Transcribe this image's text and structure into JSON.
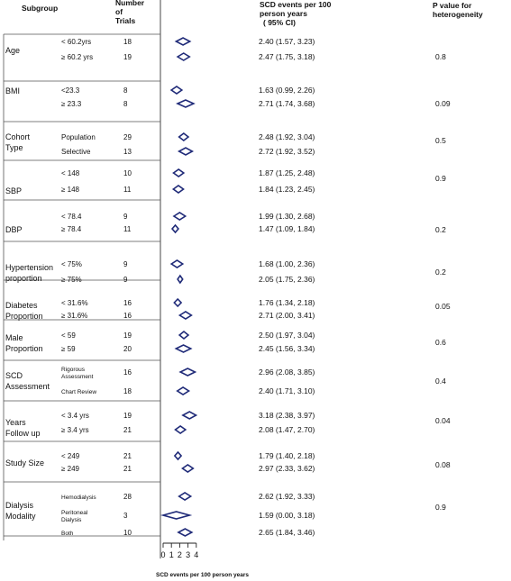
{
  "headers": {
    "subgroup": "Subgroup",
    "trials": [
      "Number",
      "of",
      "Trials"
    ],
    "estimate": [
      "SCD events per 100",
      "person years",
      "( 95% CI)"
    ],
    "pvalue": [
      "P value for",
      "heterogeneity"
    ]
  },
  "chart_data": {
    "type": "forest",
    "xlabel": "SCD events per 100 person years",
    "xticks": [
      "0",
      "1",
      "2",
      "3",
      "4"
    ],
    "xlim": [
      0,
      4
    ],
    "groups": [
      {
        "label": [
          "Age"
        ],
        "p": "0.8",
        "rows": [
          {
            "sub": "< 60.2yrs",
            "n": "18",
            "est": 2.4,
            "lo": 1.57,
            "hi": 3.23,
            "text": "2.40 (1.57, 3.23)"
          },
          {
            "sub": "≥ 60.2 yrs",
            "n": "19",
            "est": 2.47,
            "lo": 1.75,
            "hi": 3.18,
            "text": "2.47 (1.75, 3.18)"
          }
        ]
      },
      {
        "label": [
          "BMI"
        ],
        "p": "0.09",
        "rows": [
          {
            "sub": "<23.3",
            "n": "8",
            "est": 1.63,
            "lo": 0.99,
            "hi": 2.26,
            "text": "1.63 (0.99, 2.26)"
          },
          {
            "sub": "≥ 23.3",
            "n": "8",
            "est": 2.71,
            "lo": 1.74,
            "hi": 3.68,
            "text": "2.71 (1.74, 3.68)"
          }
        ]
      },
      {
        "label": [
          "Cohort",
          "Type"
        ],
        "p": "0.5",
        "rows": [
          {
            "sub": "Population",
            "n": "29",
            "est": 2.48,
            "lo": 1.92,
            "hi": 3.04,
            "text": "2.48 (1.92, 3.04)"
          },
          {
            "sub": "Selective",
            "n": "13",
            "est": 2.72,
            "lo": 1.92,
            "hi": 3.52,
            "text": "2.72 (1.92, 3.52)"
          }
        ]
      },
      {
        "label": [
          "SBP"
        ],
        "p": "0.9",
        "rows": [
          {
            "sub": "< 148",
            "n": "10",
            "est": 1.87,
            "lo": 1.25,
            "hi": 2.48,
            "text": "1.87 (1.25, 2.48)"
          },
          {
            "sub": "≥ 148",
            "n": "11",
            "est": 1.84,
            "lo": 1.23,
            "hi": 2.45,
            "text": "1.84 (1.23, 2.45)"
          }
        ]
      },
      {
        "label": [
          "DBP"
        ],
        "p": "0.2",
        "rows": [
          {
            "sub": "< 78.4",
            "n": "9",
            "est": 1.99,
            "lo": 1.3,
            "hi": 2.68,
            "text": "1.99 (1.30, 2.68)"
          },
          {
            "sub": "≥ 78.4",
            "n": "11",
            "est": 1.47,
            "lo": 1.09,
            "hi": 1.84,
            "text": "1.47 (1.09, 1.84)"
          }
        ]
      },
      {
        "label": [
          "Hypertension",
          "proportion"
        ],
        "p": "0.2",
        "rows": [
          {
            "sub": "< 75%",
            "n": "9",
            "est": 1.68,
            "lo": 1.0,
            "hi": 2.36,
            "text": "1.68 (1.00, 2.36)"
          },
          {
            "sub": "≥ 75%",
            "n": "9",
            "est": 2.05,
            "lo": 1.75,
            "hi": 2.36,
            "text": "2.05 (1.75, 2.36)"
          }
        ]
      },
      {
        "label": [
          "Diabetes",
          "Proportion"
        ],
        "p": "0.05",
        "rows": [
          {
            "sub": "< 31.6%",
            "n": "16",
            "est": 1.76,
            "lo": 1.34,
            "hi": 2.18,
            "text": "1.76 (1.34, 2.18)"
          },
          {
            "sub": "≥ 31.6%",
            "n": "16",
            "est": 2.71,
            "lo": 2.0,
            "hi": 3.41,
            "text": "2.71 (2.00, 3.41)"
          }
        ]
      },
      {
        "label": [
          "Male",
          "Proportion"
        ],
        "p": "0.6",
        "rows": [
          {
            "sub": "< 59",
            "n": "19",
            "est": 2.5,
            "lo": 1.97,
            "hi": 3.04,
            "text": "2.50 (1.97, 3.04)"
          },
          {
            "sub": "≥ 59",
            "n": "20",
            "est": 2.45,
            "lo": 1.56,
            "hi": 3.34,
            "text": "2.45 (1.56, 3.34)"
          }
        ]
      },
      {
        "label": [
          "SCD",
          "Assessment"
        ],
        "p": "0.4",
        "rows": [
          {
            "sub": [
              "Rigorous",
              "Assessment"
            ],
            "n": "16",
            "est": 2.96,
            "lo": 2.08,
            "hi": 3.85,
            "text": "2.96 (2.08, 3.85)"
          },
          {
            "sub": "Chart Review",
            "n": "18",
            "est": 2.4,
            "lo": 1.71,
            "hi": 3.1,
            "text": "2.40 (1.71, 3.10)"
          }
        ]
      },
      {
        "label": [
          "Years",
          "Follow  up"
        ],
        "p": "0.04",
        "rows": [
          {
            "sub": "< 3.4 yrs",
            "n": "19",
            "est": 3.18,
            "lo": 2.38,
            "hi": 3.97,
            "text": "3.18 (2.38, 3.97)"
          },
          {
            "sub": "≥ 3.4 yrs",
            "n": "21",
            "est": 2.08,
            "lo": 1.47,
            "hi": 2.7,
            "text": "2.08 (1.47, 2.70)"
          }
        ]
      },
      {
        "label": [
          "Study Size"
        ],
        "p": "0.08",
        "rows": [
          {
            "sub": "< 249",
            "n": "21",
            "est": 1.79,
            "lo": 1.4,
            "hi": 2.18,
            "text": "1.79 (1.40, 2.18)"
          },
          {
            "sub": "≥ 249",
            "n": "21",
            "est": 2.97,
            "lo": 2.33,
            "hi": 3.62,
            "text": "2.97 (2.33, 3.62)"
          }
        ]
      },
      {
        "label": [
          "Dialysis",
          "Modality"
        ],
        "p": "0.9",
        "rows": [
          {
            "sub": "Hemodialysis",
            "n": "28",
            "est": 2.62,
            "lo": 1.92,
            "hi": 3.33,
            "text": "2.62 (1.92, 3.33)"
          },
          {
            "sub": [
              "Peritoneal",
              "Dialysis"
            ],
            "n": "3",
            "est": 1.59,
            "lo": 0.0,
            "hi": 3.18,
            "text": "1.59 (0.00, 3.18)"
          },
          {
            "sub": "Both",
            "n": "10",
            "est": 2.65,
            "lo": 1.84,
            "hi": 3.46,
            "text": "2.65 (1.84, 3.46)"
          }
        ]
      }
    ]
  }
}
